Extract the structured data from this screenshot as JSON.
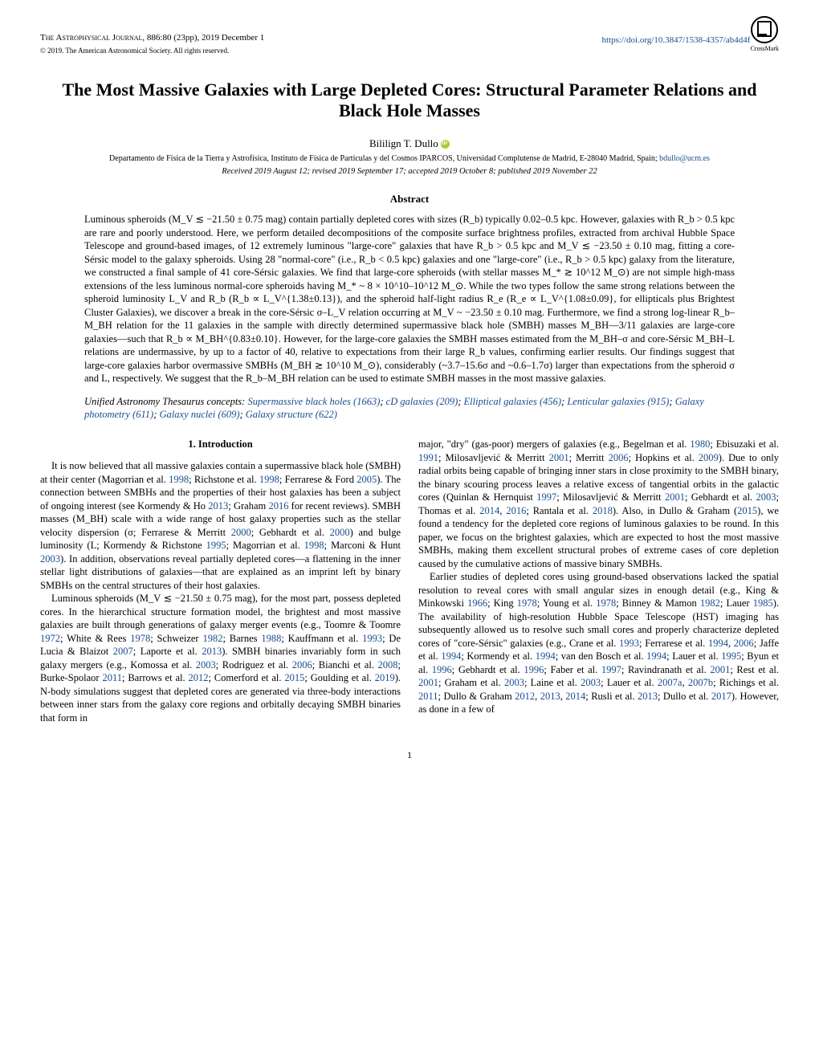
{
  "header": {
    "journal": "The Astrophysical Journal,",
    "citation": " 886:80 (23pp), 2019 December 1",
    "copyright": "© 2019. The American Astronomical Society. All rights reserved.",
    "doi": "https://doi.org/10.3847/1538-4357/ab4d4f",
    "crossmark": "CrossMark"
  },
  "title": "The Most Massive Galaxies with Large Depleted Cores: Structural Parameter Relations and Black Hole Masses",
  "author": "Bililign T. Dullo",
  "affiliation": "Departamento de Física de la Tierra y Astrofísica, Instituto de Física de Partículas y del Cosmos IPARCOS, Universidad Complutense de Madrid, E-28040 Madrid, Spain; ",
  "email": "bdullo@ucm.es",
  "dates": "Received 2019 August 12; revised 2019 September 17; accepted 2019 October 8; published 2019 November 22",
  "abstract_header": "Abstract",
  "abstract": "Luminous spheroids (M_V ≲ −21.50 ± 0.75 mag) contain partially depleted cores with sizes (R_b) typically 0.02–0.5 kpc. However, galaxies with R_b > 0.5 kpc are rare and poorly understood. Here, we perform detailed decompositions of the composite surface brightness profiles, extracted from archival Hubble Space Telescope and ground-based images, of 12 extremely luminous \"large-core\" galaxies that have R_b > 0.5 kpc and M_V ≲ −23.50 ± 0.10 mag, fitting a core-Sérsic model to the galaxy spheroids. Using 28 \"normal-core\" (i.e., R_b < 0.5 kpc) galaxies and one \"large-core\" (i.e., R_b > 0.5 kpc) galaxy from the literature, we constructed a final sample of 41 core-Sérsic galaxies. We find that large-core spheroids (with stellar masses M_* ≳ 10^12 M_⊙) are not simple high-mass extensions of the less luminous normal-core spheroids having M_* ~ 8 × 10^10–10^12 M_⊙. While the two types follow the same strong relations between the spheroid luminosity L_V and R_b (R_b ∝ L_V^{1.38±0.13}), and the spheroid half-light radius R_e (R_e ∝ L_V^{1.08±0.09}, for ellipticals plus Brightest Cluster Galaxies), we discover a break in the core-Sérsic σ–L_V relation occurring at M_V ~ −23.50 ± 0.10 mag. Furthermore, we find a strong log-linear R_b–M_BH relation for the 11 galaxies in the sample with directly determined supermassive black hole (SMBH) masses M_BH—3/11 galaxies are large-core galaxies—such that R_b ∝ M_BH^{0.83±0.10}. However, for the large-core galaxies the SMBH masses estimated from the M_BH–σ and core-Sérsic M_BH–L relations are undermassive, by up to a factor of 40, relative to expectations from their large R_b values, confirming earlier results. Our findings suggest that large-core galaxies harbor overmassive SMBHs (M_BH ≳ 10^10 M_⊙), considerably (~3.7–15.6σ and ~0.6–1.7σ) larger than expectations from the spheroid σ and L, respectively. We suggest that the R_b–M_BH relation can be used to estimate SMBH masses in the most massive galaxies.",
  "thesaurus_label": "Unified Astronomy Thesaurus concepts: ",
  "thesaurus": [
    {
      "text": "Supermassive black holes (1663)"
    },
    {
      "text": "cD galaxies (209)"
    },
    {
      "text": "Elliptical galaxies (456)"
    },
    {
      "text": "Lenticular galaxies (915)"
    },
    {
      "text": "Galaxy photometry (611)"
    },
    {
      "text": "Galaxy nuclei (609)"
    },
    {
      "text": "Galaxy structure (622)"
    }
  ],
  "section_header": "1. Introduction",
  "col1_p1_a": "It is now believed that all massive galaxies contain a supermassive black hole (SMBH) at their center (Magorrian et al. ",
  "col1_p1_b": "; Richstone et al. ",
  "col1_p1_c": "; Ferrarese & Ford ",
  "col1_p1_d": "). The connection between SMBHs and the properties of their host galaxies has been a subject of ongoing interest (see Kormendy & Ho ",
  "col1_p1_e": "; Graham ",
  "col1_p1_f": " for recent reviews). SMBH masses (M_BH) scale with a wide range of host galaxy properties such as the stellar velocity dispersion (σ; Ferrarese & Merritt ",
  "col1_p1_g": "; Gebhardt et al. ",
  "col1_p1_h": ") and bulge luminosity (L; Kormendy & Richstone ",
  "col1_p1_i": "; Magorrian et al. ",
  "col1_p1_j": "; Marconi & Hunt ",
  "col1_p1_k": "). In addition, observations reveal partially depleted cores—a flattening in the inner stellar light distributions of galaxies—that are explained as an imprint left by binary SMBHs on the central structures of their host galaxies.",
  "col1_p2_a": "Luminous spheroids (M_V ≲ −21.50 ± 0.75 mag), for the most part, possess depleted cores. In the hierarchical structure formation model, the brightest and most massive galaxies are built through generations of galaxy merger events (e.g., Toomre & Toomre ",
  "col1_p2_b": "; White & Rees ",
  "col1_p2_c": "; Schweizer ",
  "col1_p2_d": "; Barnes ",
  "col1_p2_e": "; Kauffmann et al. ",
  "col1_p2_f": "; De Lucia & Blaizot ",
  "col1_p2_g": "; Laporte et al. ",
  "col1_p2_h": "). SMBH binaries invariably form in such galaxy mergers (e.g., Komossa et al. ",
  "col1_p2_i": "; Rodriguez et al. ",
  "col1_p2_j": "; Bianchi et al. ",
  "col1_p2_k": "; Burke-Spolaor ",
  "col1_p2_l": "; Barrows et al. ",
  "col1_p2_m": "; Comerford et al. ",
  "col1_p2_n": "; Goulding et al. ",
  "col1_p2_o": "). N-body simulations suggest that depleted cores are generated via three-body interactions between inner stars from the galaxy core regions and orbitally decaying SMBH binaries that form in",
  "col2_p1_a": "major, \"dry\" (gas-poor) mergers of galaxies (e.g., Begelman et al. ",
  "col2_p1_b": "; Ebisuzaki et al. ",
  "col2_p1_c": "; Milosavljević & Merritt ",
  "col2_p1_d": "; Merritt ",
  "col2_p1_e": "; Hopkins et al. ",
  "col2_p1_f": "). Due to only radial orbits being capable of bringing inner stars in close proximity to the SMBH binary, the binary scouring process leaves a relative excess of tangential orbits in the galactic cores (Quinlan & Hernquist ",
  "col2_p1_g": "; Milosavljević & Merritt ",
  "col2_p1_h": "; Gebhardt et al. ",
  "col2_p1_i": "; Thomas et al. ",
  "col2_p1_j": ", ",
  "col2_p1_k": "; Rantala et al. ",
  "col2_p1_l": "). Also, in Dullo & Graham (",
  "col2_p1_m": "), we found a tendency for the depleted core regions of luminous galaxies to be round. In this paper, we focus on the brightest galaxies, which are expected to host the most massive SMBHs, making them excellent structural probes of extreme cases of core depletion caused by the cumulative actions of massive binary SMBHs.",
  "col2_p2_a": "Earlier studies of depleted cores using ground-based observations lacked the spatial resolution to reveal cores with small angular sizes in enough detail (e.g., King & Minkowski ",
  "col2_p2_b": "; King ",
  "col2_p2_c": "; Young et al. ",
  "col2_p2_d": "; Binney & Mamon ",
  "col2_p2_e": "; Lauer ",
  "col2_p2_f": "). The availability of high-resolution Hubble Space Telescope (HST) imaging has subsequently allowed us to resolve such small cores and properly characterize depleted cores of \"core-Sérsic\" galaxies (e.g., Crane et al. ",
  "col2_p2_g": "; Ferrarese et al. ",
  "col2_p2_h": ", ",
  "col2_p2_i": "; Jaffe et al. ",
  "col2_p2_j": "; Kormendy et al. ",
  "col2_p2_k": "; van den Bosch et al. ",
  "col2_p2_l": "; Lauer et al. ",
  "col2_p2_m": "; Byun et al. ",
  "col2_p2_n": "; Gebhardt et al. ",
  "col2_p2_o": "; Faber et al. ",
  "col2_p2_p": "; Ravindranath et al. ",
  "col2_p2_q": "; Rest et al. ",
  "col2_p2_r": "; Graham et al. ",
  "col2_p2_s": "; Laine et al. ",
  "col2_p2_t": "; Lauer et al. ",
  "col2_p2_u": ", ",
  "col2_p2_v": "; Richings et al. ",
  "col2_p2_w": "; Dullo & Graham ",
  "col2_p2_x": ", ",
  "col2_p2_y": ", ",
  "col2_p2_z": "; Rusli et al. ",
  "col2_p2_za": "; Dullo et al. ",
  "col2_p2_zb": "). However, as done in a few of",
  "years": {
    "y1998": "1998",
    "y2005": "2005",
    "y2013": "2013",
    "y2016": "2016",
    "y2000": "2000",
    "y1995": "1995",
    "y2003": "2003",
    "y1972": "1972",
    "y1978": "1978",
    "y1982": "1982",
    "y1988": "1988",
    "y1993": "1993",
    "y2007": "2007",
    "y2006": "2006",
    "y2008": "2008",
    "y2011": "2011",
    "y2012": "2012",
    "y2015": "2015",
    "y2019": "2019",
    "y1980": "1980",
    "y1991": "1991",
    "y2001": "2001",
    "y2009": "2009",
    "y1997": "1997",
    "y2014": "2014",
    "y2018": "2018",
    "y1966": "1966",
    "y1985": "1985",
    "y1994": "1994",
    "y1996": "1996",
    "y2007a": "2007a",
    "y2007b": "2007b",
    "y2017": "2017"
  },
  "page_num": "1"
}
